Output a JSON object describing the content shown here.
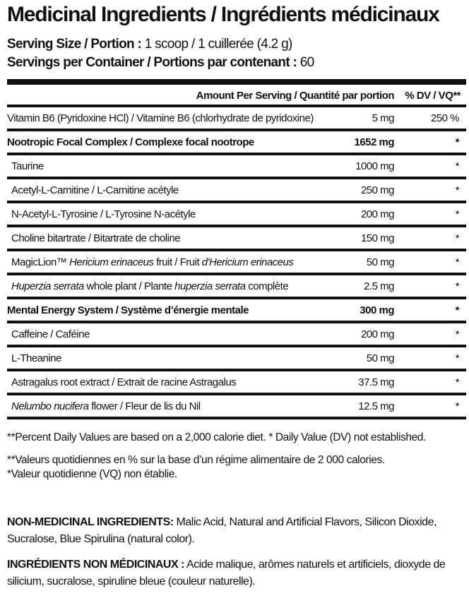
{
  "title": "Medicinal Ingredients / Ingrédients médicinaux",
  "serving_size": {
    "label": "Serving Size / Portion :",
    "value": "1 scoop / 1 cuillerée (4.2 g)"
  },
  "servings_per_container": {
    "label": "Servings per Container / Portions par contenant :",
    "value": "60"
  },
  "table": {
    "header": {
      "amount": "Amount Per Serving / Quantité par portion",
      "dv": "% DV / VQ**"
    },
    "rows": [
      {
        "type": "vit",
        "name": [
          {
            "t": "Vitamin B6 (Pyridoxine HCl) / Vitamine B6 (chlorhydrate de pyridoxine)"
          }
        ],
        "amount": "5 mg",
        "dv": "250 %"
      },
      {
        "type": "group",
        "name": [
          {
            "t": "Nootropic Focal Complex / Complexe focal nootrope"
          }
        ],
        "amount": "1652 mg",
        "dv": "*"
      },
      {
        "type": "item",
        "name": [
          {
            "t": "Taurine"
          }
        ],
        "amount": "1000 mg",
        "dv": "*"
      },
      {
        "type": "item",
        "name": [
          {
            "t": "Acetyl-L-Carnitine / L-Carnitine acétyle"
          }
        ],
        "amount": "250 mg",
        "dv": "*"
      },
      {
        "type": "item",
        "name": [
          {
            "t": "N-Acetyl-L-Tyrosine / L-Tyrosine N-acétyle"
          }
        ],
        "amount": "200 mg",
        "dv": "*"
      },
      {
        "type": "item",
        "name": [
          {
            "t": "Choline bitartrate / Bitartrate de choline"
          }
        ],
        "amount": "150 mg",
        "dv": "*"
      },
      {
        "type": "item",
        "name": [
          {
            "t": "MagicLion™ "
          },
          {
            "t": "Hericium erinaceus",
            "i": true
          },
          {
            "t": " fruit / Fruit "
          },
          {
            "t": "d'Hericium erinaceus",
            "i": true
          }
        ],
        "amount": "50 mg",
        "dv": "*"
      },
      {
        "type": "item",
        "name": [
          {
            "t": "Huperzia serrata",
            "i": true
          },
          {
            "t": " whole plant / Plante "
          },
          {
            "t": "huperzia serrata",
            "i": true
          },
          {
            "t": " complète"
          }
        ],
        "amount": "2.5 mg",
        "dv": "*"
      },
      {
        "type": "group",
        "name": [
          {
            "t": "Mental Energy System / Système d’énergie mentale"
          }
        ],
        "amount": "300 mg",
        "dv": "*"
      },
      {
        "type": "item",
        "name": [
          {
            "t": "Caffeine / Caféine"
          }
        ],
        "amount": "200 mg",
        "dv": "*"
      },
      {
        "type": "item",
        "name": [
          {
            "t": "L-Theanine"
          }
        ],
        "amount": "50 mg",
        "dv": "*"
      },
      {
        "type": "item",
        "name": [
          {
            "t": "Astragalus root extract / Extrait de racine Astragalus"
          }
        ],
        "amount": "37.5 mg",
        "dv": "*"
      },
      {
        "type": "item",
        "name": [
          {
            "t": "Nelumbo nucifera",
            "i": true
          },
          {
            "t": " flower / Fleur de lis du Nil"
          }
        ],
        "amount": "12.5 mg",
        "dv": "*"
      }
    ]
  },
  "footnotes": [
    "**Percent Daily Values are based on a 2,000 calorie diet. * Daily Value (DV) not established.",
    "**Valeurs quotidiennes en % sur la base d’un régime alimentaire de 2 000 calories.",
    "*Valeur quotidienne (VQ) non établie."
  ],
  "non_medicinal_en": {
    "label": "NON-MEDICINAL INGREDIENTS:",
    "text": " Malic Acid, Natural and Artificial Flavors, Silicon Dioxide, Sucralose, Blue Spirulina (natural color)."
  },
  "non_medicinal_fr": {
    "label": "INGRÉDIENTS NON MÉDICINAUX :",
    "text": " Acide malique, arômes naturels et artificiels, dioxyde de silicium, sucralose, spiruline bleue (couleur naturelle)."
  }
}
